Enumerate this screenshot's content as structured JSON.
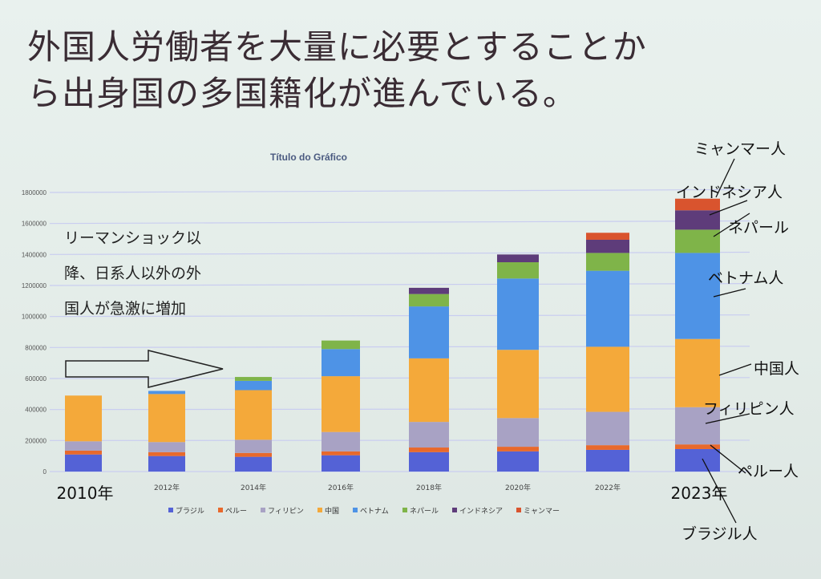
{
  "slide": {
    "title_line1": "外国人労働者を大量に必要とすることか",
    "title_line2": "ら出身国の多国籍化が進んでいる。",
    "note_lines": [
      "リーマンショック以",
      "降、日系人以外の外",
      "国人が急激に増加"
    ]
  },
  "chart_data": {
    "type": "bar",
    "stacked": true,
    "title": "Título do Gráfico",
    "categories": [
      "2010年",
      "2012年",
      "2014年",
      "2016年",
      "2018年",
      "2020年",
      "2022年",
      "2023年"
    ],
    "yticks": [
      "0",
      "200000",
      "400000",
      "600000",
      "800000",
      "1000000",
      "1200000",
      "1400000",
      "1600000",
      "1800000"
    ],
    "ylim": [
      0,
      1800000
    ],
    "grid": true,
    "legend_position": "bottom",
    "series": [
      {
        "name": "ブラジル",
        "color": "#5462d6",
        "values": [
          110000,
          100000,
          95000,
          105000,
          125000,
          130000,
          140000,
          145000
        ]
      },
      {
        "name": "ペルー",
        "color": "#e8692c",
        "values": [
          25000,
          25000,
          25000,
          25000,
          30000,
          30000,
          30000,
          30000
        ]
      },
      {
        "name": "フィリピン",
        "color": "#a8a2c4",
        "values": [
          60000,
          65000,
          85000,
          125000,
          165000,
          185000,
          215000,
          240000
        ]
      },
      {
        "name": "中国",
        "color": "#f4a93a",
        "values": [
          295000,
          310000,
          320000,
          360000,
          410000,
          440000,
          420000,
          440000
        ]
      },
      {
        "name": "ベトナム",
        "color": "#4e93e6",
        "values": [
          0,
          20000,
          60000,
          175000,
          335000,
          460000,
          490000,
          555000
        ]
      },
      {
        "name": "ネパール",
        "color": "#7fb449",
        "values": [
          0,
          0,
          25000,
          55000,
          80000,
          105000,
          115000,
          150000
        ]
      },
      {
        "name": "インドネシア",
        "color": "#5e3c7a",
        "values": [
          0,
          0,
          0,
          0,
          40000,
          50000,
          85000,
          125000
        ]
      },
      {
        "name": "ミャンマー",
        "color": "#d9542e",
        "values": [
          0,
          0,
          0,
          0,
          0,
          0,
          45000,
          75000
        ]
      }
    ],
    "annotations": [
      {
        "label": "ミャンマー人",
        "series": "ミャンマー"
      },
      {
        "label": "インドネシア人",
        "series": "インドネシア"
      },
      {
        "label": "ネパール",
        "series": "ネパール"
      },
      {
        "label": "ベトナム人",
        "series": "ベトナム"
      },
      {
        "label": "中国人",
        "series": "中国"
      },
      {
        "label": "フィリピン人",
        "series": "フィリピン"
      },
      {
        "label": "ペルー人",
        "series": "ペルー"
      },
      {
        "label": "ブラジル人",
        "series": "ブラジル"
      }
    ]
  }
}
